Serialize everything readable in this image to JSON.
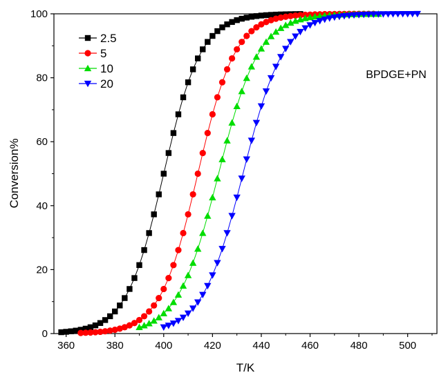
{
  "chart_data": {
    "type": "line",
    "title": "",
    "xlabel": "T/K",
    "ylabel": "Conversion%",
    "xlim": [
      355,
      512
    ],
    "ylim": [
      0,
      100
    ],
    "xticks": [
      360,
      380,
      400,
      420,
      440,
      460,
      480,
      500
    ],
    "yticks": [
      0,
      20,
      40,
      60,
      80,
      100
    ],
    "grid": false,
    "legend_position": "top-left",
    "annotation": "BPDGE+PN",
    "series": [
      {
        "name": "2.5",
        "color": "#000000",
        "marker": "square",
        "k": 0.13,
        "x0": 400.0,
        "xmin": 358,
        "xmax": 456,
        "step": 2
      },
      {
        "name": "5",
        "color": "#ff0000",
        "marker": "circle",
        "k": 0.13,
        "x0": 414.0,
        "xmin": 366,
        "xmax": 486,
        "step": 2
      },
      {
        "name": "10",
        "color": "#00dd00",
        "marker": "triangle-up",
        "k": 0.12,
        "x0": 422.5,
        "xmin": 390,
        "xmax": 488,
        "step": 2
      },
      {
        "name": "20",
        "color": "#0000ff",
        "marker": "triangle-down",
        "k": 0.12,
        "x0": 432.5,
        "xmin": 400,
        "xmax": 504,
        "step": 2
      }
    ]
  }
}
